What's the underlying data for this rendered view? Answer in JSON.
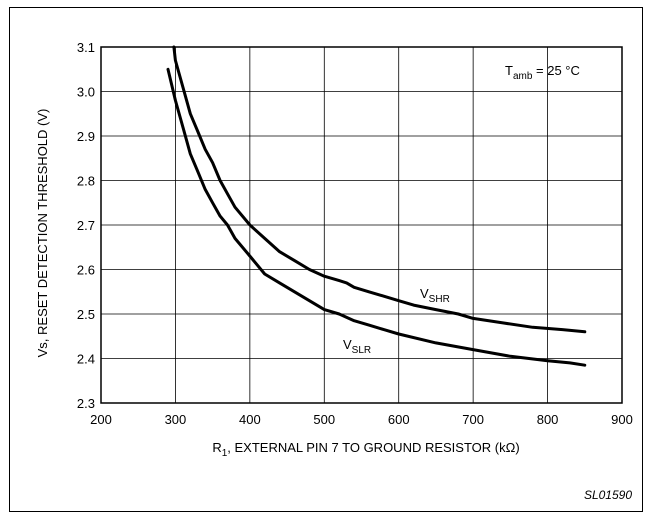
{
  "chart_data": {
    "type": "line",
    "xlabel": "R1, EXTERNAL PIN 7 TO GROUND RESISTOR (kΩ)",
    "xlabel_main": "R",
    "xlabel_sub": "1",
    "xlabel_rest": ", EXTERNAL PIN 7 TO GROUND RESISTOR (kΩ)",
    "ylabel": "Vs, RESET DETECTION THRESHOLD (V)",
    "xlim": [
      200,
      900
    ],
    "ylim": [
      2.3,
      3.1
    ],
    "x_ticks": [
      "200",
      "300",
      "400",
      "500",
      "600",
      "700",
      "800",
      "900"
    ],
    "y_ticks": [
      "2.3",
      "2.4",
      "2.5",
      "2.6",
      "2.7",
      "2.8",
      "2.9",
      "3.0",
      "3.1"
    ],
    "grid": true,
    "annotation": {
      "main": "T",
      "sub": "amb",
      "rest": " = 25 °C",
      "text": "Tamb = 25 °C"
    },
    "figure_code": "SL01590",
    "series": [
      {
        "name": "VSHR",
        "label_main": "V",
        "label_sub": "SHR",
        "x": [
          298,
          300,
          310,
          320,
          330,
          340,
          350,
          360,
          370,
          380,
          400,
          420,
          440,
          460,
          480,
          500,
          520,
          530,
          540,
          560,
          580,
          600,
          620,
          650,
          680,
          700,
          740,
          780,
          820,
          850
        ],
        "y": [
          3.1,
          3.07,
          3.01,
          2.95,
          2.91,
          2.87,
          2.84,
          2.8,
          2.77,
          2.74,
          2.7,
          2.67,
          2.64,
          2.62,
          2.6,
          2.585,
          2.575,
          2.57,
          2.56,
          2.55,
          2.54,
          2.53,
          2.52,
          2.51,
          2.5,
          2.49,
          2.48,
          2.47,
          2.465,
          2.46
        ]
      },
      {
        "name": "VSLR",
        "label_main": "V",
        "label_sub": "SLR",
        "x": [
          290,
          300,
          310,
          320,
          330,
          340,
          350,
          360,
          370,
          380,
          400,
          420,
          440,
          460,
          480,
          500,
          520,
          540,
          560,
          580,
          600,
          650,
          700,
          750,
          800,
          830,
          850
        ],
        "y": [
          3.05,
          2.98,
          2.92,
          2.86,
          2.82,
          2.78,
          2.75,
          2.72,
          2.7,
          2.67,
          2.63,
          2.59,
          2.57,
          2.55,
          2.53,
          2.51,
          2.5,
          2.485,
          2.475,
          2.465,
          2.455,
          2.435,
          2.42,
          2.405,
          2.395,
          2.39,
          2.385
        ]
      }
    ]
  }
}
